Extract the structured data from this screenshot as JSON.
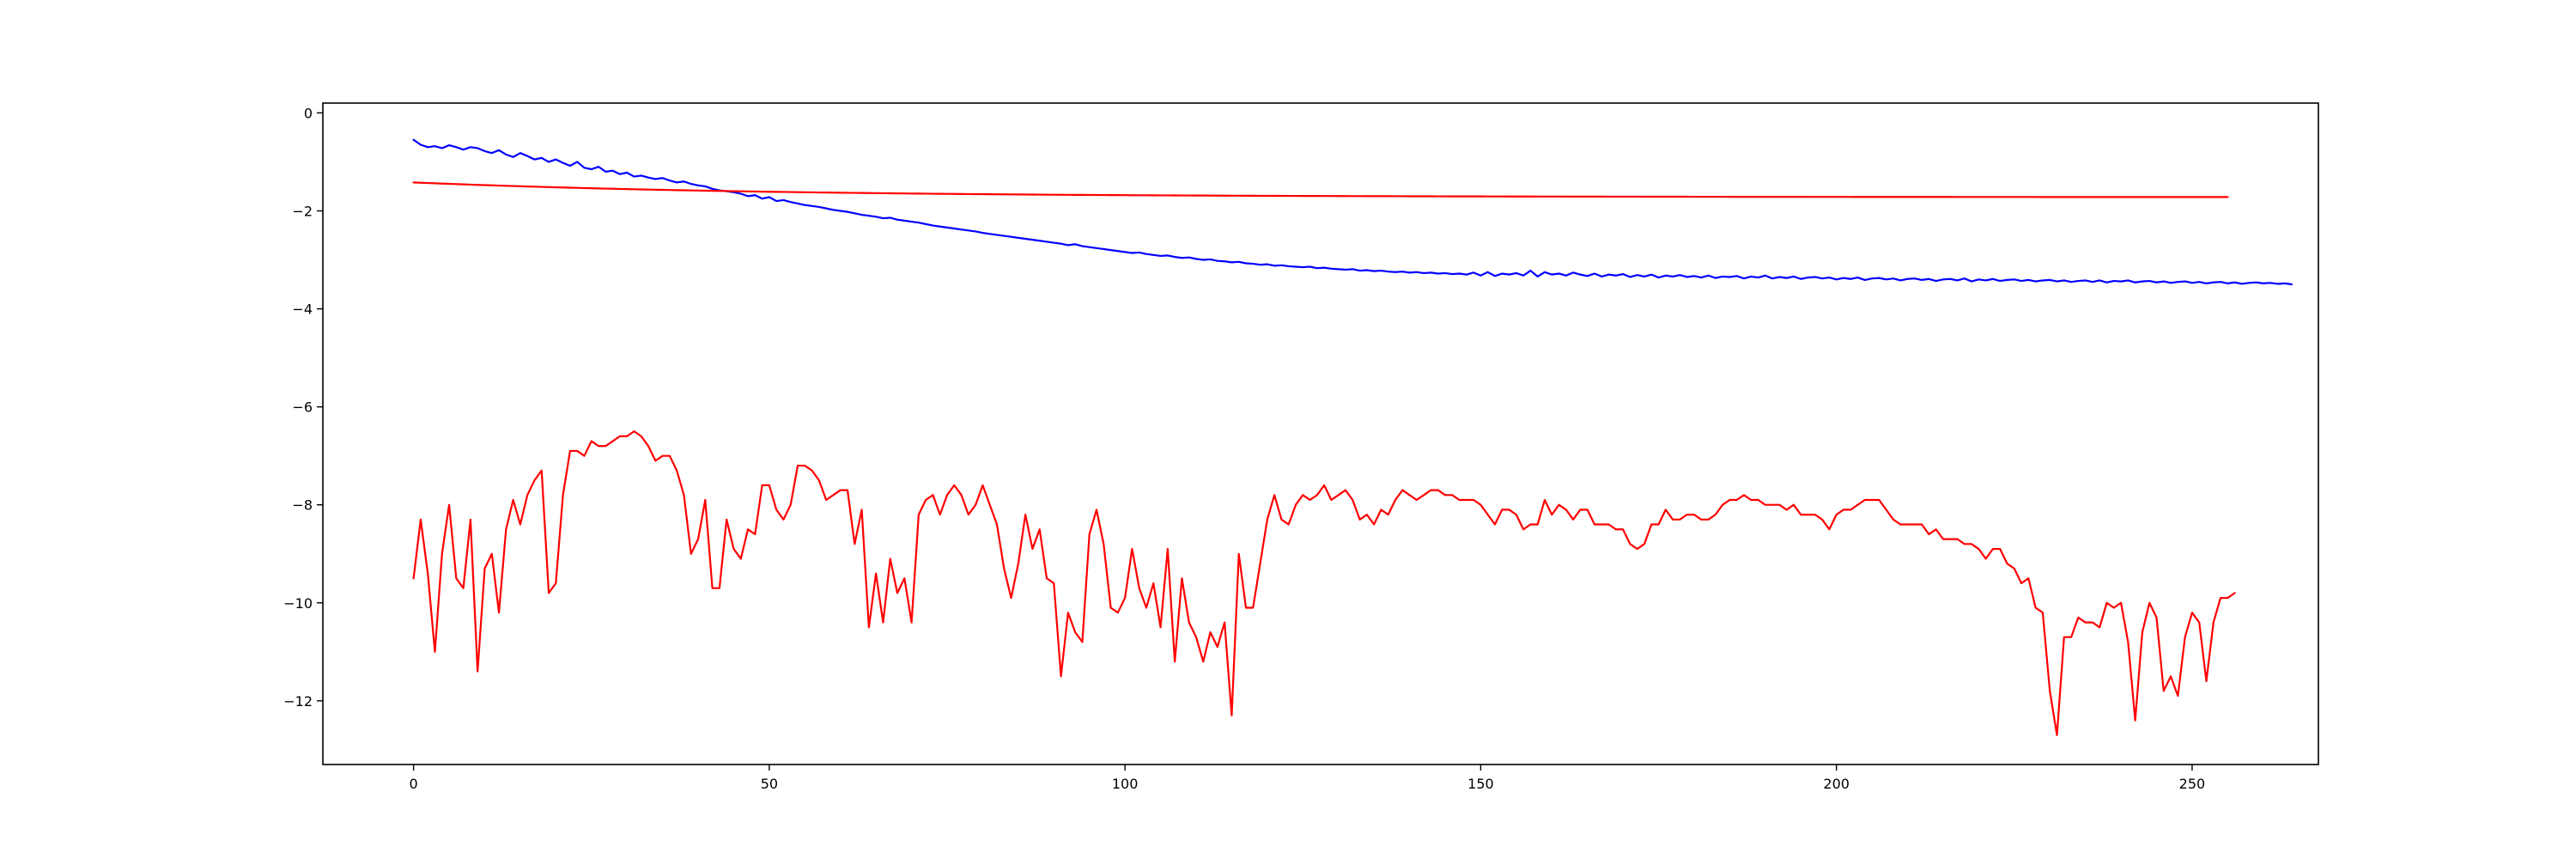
{
  "chart_data": {
    "type": "line",
    "title": "",
    "xlabel": "",
    "ylabel": "",
    "xlim": [
      -12.75,
      267.75
    ],
    "ylim": [
      -13.3,
      0.2
    ],
    "grid": false,
    "x_ticks": [
      {
        "value": 0,
        "label": "0"
      },
      {
        "value": 50,
        "label": "50"
      },
      {
        "value": 100,
        "label": "100"
      },
      {
        "value": 150,
        "label": "150"
      },
      {
        "value": 200,
        "label": "200"
      },
      {
        "value": 250,
        "label": "250"
      }
    ],
    "y_ticks": [
      {
        "value": 0,
        "label": "0"
      },
      {
        "value": -2,
        "label": "−2"
      },
      {
        "value": -4,
        "label": "−4"
      },
      {
        "value": -6,
        "label": "−6"
      },
      {
        "value": -8,
        "label": "−8"
      },
      {
        "value": -10,
        "label": "−10"
      },
      {
        "value": -12,
        "label": "−12"
      }
    ],
    "x": {
      "start": 0,
      "step": 1,
      "count": 256
    },
    "series": [
      {
        "color": "#0000ff",
        "values": [
          -0.55,
          -0.65,
          -0.7,
          -0.68,
          -0.72,
          -0.66,
          -0.7,
          -0.75,
          -0.7,
          -0.72,
          -0.78,
          -0.82,
          -0.76,
          -0.85,
          -0.9,
          -0.82,
          -0.88,
          -0.95,
          -0.92,
          -1.0,
          -0.95,
          -1.02,
          -1.08,
          -1.0,
          -1.12,
          -1.15,
          -1.1,
          -1.2,
          -1.18,
          -1.25,
          -1.22,
          -1.3,
          -1.28,
          -1.32,
          -1.35,
          -1.33,
          -1.38,
          -1.42,
          -1.4,
          -1.45,
          -1.48,
          -1.5,
          -1.55,
          -1.58,
          -1.6,
          -1.62,
          -1.65,
          -1.7,
          -1.68,
          -1.75,
          -1.72,
          -1.8,
          -1.78,
          -1.82,
          -1.85,
          -1.88,
          -1.9,
          -1.92,
          -1.95,
          -1.98,
          -2.0,
          -2.02,
          -2.05,
          -2.08,
          -2.1,
          -2.12,
          -2.15,
          -2.14,
          -2.18,
          -2.2,
          -2.22,
          -2.24,
          -2.27,
          -2.3,
          -2.32,
          -2.34,
          -2.36,
          -2.38,
          -2.4,
          -2.42,
          -2.45,
          -2.47,
          -2.49,
          -2.51,
          -2.53,
          -2.55,
          -2.57,
          -2.59,
          -2.61,
          -2.63,
          -2.65,
          -2.67,
          -2.7,
          -2.68,
          -2.72,
          -2.74,
          -2.76,
          -2.78,
          -2.8,
          -2.82,
          -2.84,
          -2.86,
          -2.85,
          -2.88,
          -2.9,
          -2.92,
          -2.91,
          -2.94,
          -2.96,
          -2.95,
          -2.98,
          -3.0,
          -2.99,
          -3.02,
          -3.03,
          -3.05,
          -3.04,
          -3.07,
          -3.08,
          -3.1,
          -3.09,
          -3.12,
          -3.11,
          -3.13,
          -3.14,
          -3.15,
          -3.14,
          -3.17,
          -3.16,
          -3.18,
          -3.19,
          -3.2,
          -3.19,
          -3.22,
          -3.21,
          -3.23,
          -3.22,
          -3.24,
          -3.25,
          -3.24,
          -3.26,
          -3.25,
          -3.27,
          -3.26,
          -3.28,
          -3.27,
          -3.29,
          -3.28,
          -3.3,
          -3.26,
          -3.32,
          -3.25,
          -3.33,
          -3.28,
          -3.3,
          -3.27,
          -3.32,
          -3.22,
          -3.34,
          -3.25,
          -3.3,
          -3.28,
          -3.32,
          -3.26,
          -3.3,
          -3.33,
          -3.28,
          -3.34,
          -3.3,
          -3.32,
          -3.29,
          -3.35,
          -3.31,
          -3.34,
          -3.3,
          -3.36,
          -3.32,
          -3.34,
          -3.31,
          -3.35,
          -3.33,
          -3.36,
          -3.32,
          -3.37,
          -3.34,
          -3.35,
          -3.33,
          -3.38,
          -3.34,
          -3.36,
          -3.32,
          -3.38,
          -3.35,
          -3.37,
          -3.34,
          -3.39,
          -3.36,
          -3.35,
          -3.38,
          -3.36,
          -3.4,
          -3.37,
          -3.39,
          -3.36,
          -3.41,
          -3.38,
          -3.37,
          -3.4,
          -3.38,
          -3.42,
          -3.39,
          -3.38,
          -3.41,
          -3.39,
          -3.43,
          -3.4,
          -3.39,
          -3.42,
          -3.38,
          -3.44,
          -3.4,
          -3.42,
          -3.39,
          -3.43,
          -3.41,
          -3.4,
          -3.43,
          -3.41,
          -3.44,
          -3.42,
          -3.41,
          -3.44,
          -3.42,
          -3.45,
          -3.43,
          -3.42,
          -3.45,
          -3.42,
          -3.46,
          -3.43,
          -3.44,
          -3.42,
          -3.46,
          -3.44,
          -3.43,
          -3.46,
          -3.44,
          -3.47,
          -3.45,
          -3.44,
          -3.47,
          -3.45,
          -3.48,
          -3.46,
          -3.45,
          -3.48,
          -3.46,
          -3.49,
          -3.47,
          -3.46,
          -3.48,
          -3.47,
          -3.49,
          -3.48,
          -3.5
        ]
      },
      {
        "color": "#ff0000",
        "line": {
          "type": "smooth",
          "start": -1.42,
          "end": -1.72,
          "rate": 0.02
        }
      },
      {
        "color": "#ff0000",
        "values": [
          -9.5,
          -8.3,
          -9.4,
          -11.0,
          -9.0,
          -8.0,
          -9.5,
          -9.7,
          -8.3,
          -11.4,
          -9.3,
          -9.0,
          -10.2,
          -8.5,
          -7.9,
          -8.4,
          -7.8,
          -7.5,
          -7.3,
          -9.8,
          -9.6,
          -7.8,
          -6.9,
          -6.9,
          -7.0,
          -6.7,
          -6.8,
          -6.8,
          -6.7,
          -6.6,
          -6.6,
          -6.5,
          -6.6,
          -6.8,
          -7.1,
          -7.0,
          -7.0,
          -7.3,
          -7.8,
          -9.0,
          -8.7,
          -7.9,
          -9.7,
          -9.7,
          -8.3,
          -8.9,
          -9.1,
          -8.5,
          -8.6,
          -7.6,
          -7.6,
          -8.1,
          -8.3,
          -8.0,
          -7.2,
          -7.2,
          -7.3,
          -7.5,
          -7.9,
          -7.8,
          -7.7,
          -7.7,
          -8.8,
          -8.1,
          -10.5,
          -9.4,
          -10.4,
          -9.1,
          -9.8,
          -9.5,
          -10.4,
          -8.2,
          -7.9,
          -7.8,
          -8.2,
          -7.8,
          -7.6,
          -7.8,
          -8.2,
          -8.0,
          -7.6,
          -8.0,
          -8.4,
          -9.3,
          -9.9,
          -9.2,
          -8.2,
          -8.9,
          -8.5,
          -9.5,
          -9.6,
          -11.5,
          -10.2,
          -10.6,
          -10.8,
          -8.6,
          -8.1,
          -8.8,
          -10.1,
          -10.2,
          -9.9,
          -8.9,
          -9.7,
          -10.1,
          -9.6,
          -10.5,
          -8.9,
          -11.2,
          -9.5,
          -10.4,
          -10.7,
          -11.2,
          -10.6,
          -10.9,
          -10.4,
          -12.3,
          -9.0,
          -10.1,
          -10.1,
          -9.2,
          -8.3,
          -7.8,
          -8.3,
          -8.4,
          -8.0,
          -7.8,
          -7.9,
          -7.8,
          -7.6,
          -7.9,
          -7.8,
          -7.7,
          -7.9,
          -8.3,
          -8.2,
          -8.4,
          -8.1,
          -8.2,
          -7.9,
          -7.7,
          -7.8,
          -7.9,
          -7.8,
          -7.7,
          -7.7,
          -7.8,
          -7.8,
          -7.9,
          -7.9,
          -7.9,
          -8.0,
          -8.2,
          -8.4,
          -8.1,
          -8.1,
          -8.2,
          -8.5,
          -8.4,
          -8.4,
          -7.9,
          -8.2,
          -8.0,
          -8.1,
          -8.3,
          -8.1,
          -8.1,
          -8.4,
          -8.4,
          -8.4,
          -8.5,
          -8.5,
          -8.8,
          -8.9,
          -8.8,
          -8.4,
          -8.4,
          -8.1,
          -8.3,
          -8.3,
          -8.2,
          -8.2,
          -8.3,
          -8.3,
          -8.2,
          -8.0,
          -7.9,
          -7.9,
          -7.8,
          -7.9,
          -7.9,
          -8.0,
          -8.0,
          -8.0,
          -8.1,
          -8.0,
          -8.2,
          -8.2,
          -8.2,
          -8.3,
          -8.5,
          -8.2,
          -8.1,
          -8.1,
          -8.0,
          -7.9,
          -7.9,
          -7.9,
          -8.1,
          -8.3,
          -8.4,
          -8.4,
          -8.4,
          -8.4,
          -8.6,
          -8.5,
          -8.7,
          -8.7,
          -8.7,
          -8.8,
          -8.8,
          -8.9,
          -9.1,
          -8.9,
          -8.9,
          -9.2,
          -9.3,
          -9.6,
          -9.5,
          -10.1,
          -10.2,
          -11.8,
          -12.7,
          -10.7,
          -10.7,
          -10.3,
          -10.4,
          -10.4,
          -10.5,
          -10.0,
          -10.1,
          -10.0,
          -10.8,
          -12.4,
          -10.6,
          -10.0,
          -10.3,
          -11.8,
          -11.5,
          -11.9,
          -10.7,
          -10.2,
          -10.4,
          -11.6,
          -10.4,
          -9.9,
          -9.9,
          -9.8
        ]
      }
    ]
  }
}
